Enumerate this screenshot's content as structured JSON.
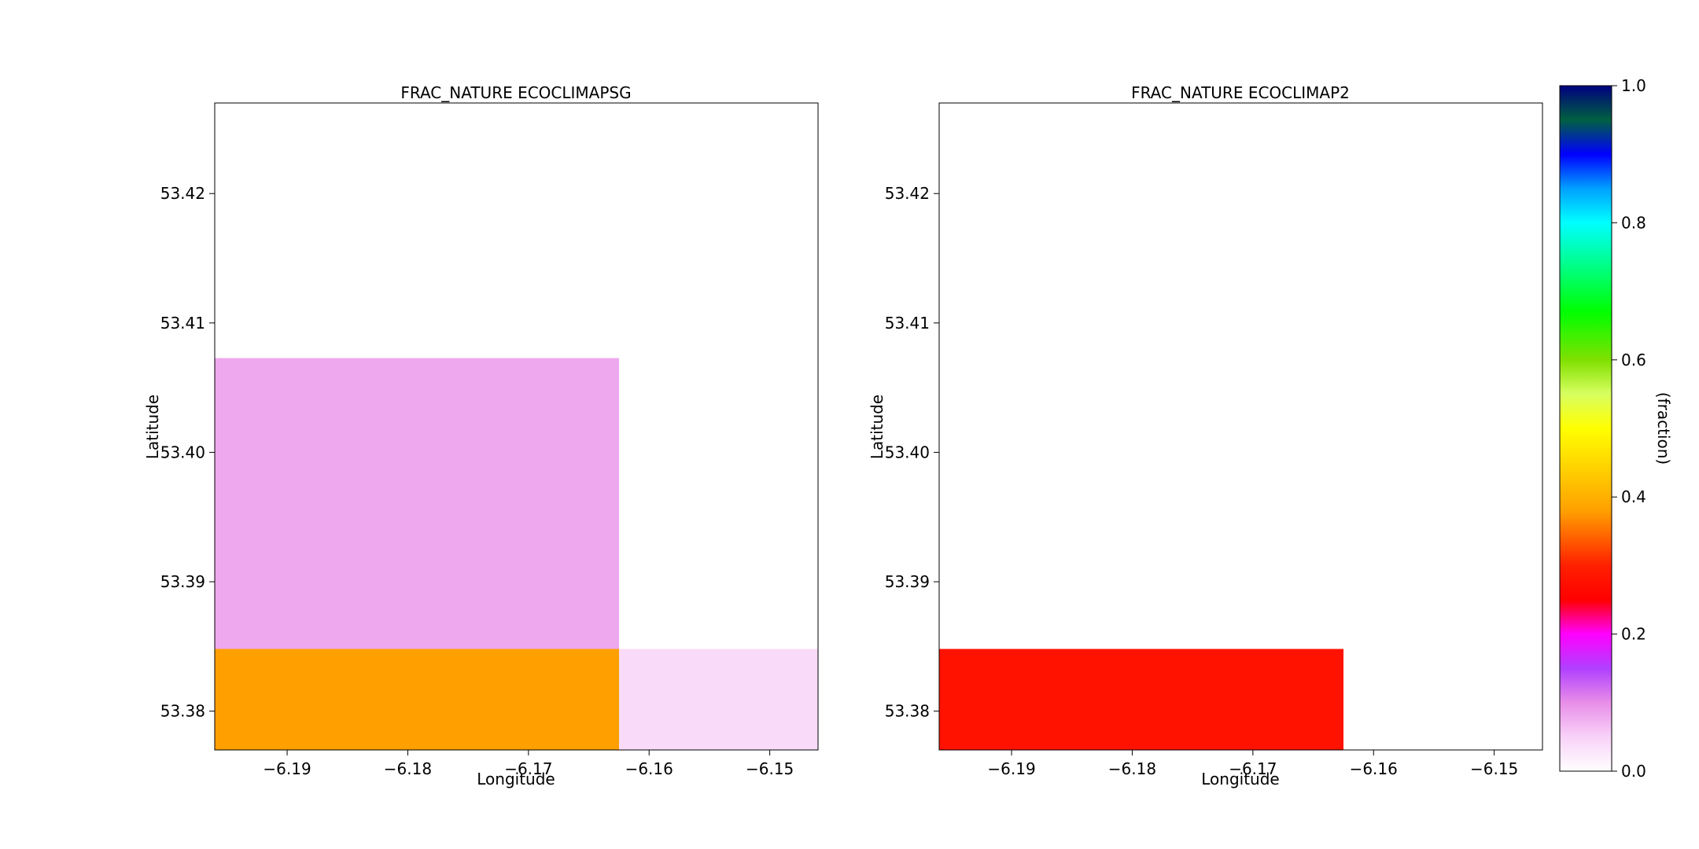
{
  "chart_data": [
    {
      "type": "heatmap",
      "title": "FRAC_NATURE ECOCLIMAPSG",
      "xlabel": "Longitude",
      "ylabel": "Latitude",
      "xlim": [
        -6.196,
        -6.146
      ],
      "ylim": [
        53.377,
        53.427
      ],
      "xticks": [
        -6.19,
        -6.18,
        -6.17,
        -6.16,
        -6.15
      ],
      "xtick_labels": [
        "−6.19",
        "−6.18",
        "−6.17",
        "−6.16",
        "−6.15"
      ],
      "yticks": [
        53.38,
        53.39,
        53.4,
        53.41,
        53.42
      ],
      "ytick_labels": [
        "53.38",
        "53.39",
        "53.40",
        "53.41",
        "53.42"
      ],
      "cells": [
        {
          "lon": [
            -6.196,
            -6.1625
          ],
          "lat": [
            53.377,
            53.3848
          ],
          "value": 0.38
        },
        {
          "lon": [
            -6.1625,
            -6.146
          ],
          "lat": [
            53.377,
            53.3848
          ],
          "value": 0.04
        },
        {
          "lon": [
            -6.196,
            -6.1625
          ],
          "lat": [
            53.3848,
            53.4073
          ],
          "value": 0.08
        },
        {
          "lon": [
            -6.1625,
            -6.146
          ],
          "lat": [
            53.3848,
            53.4073
          ],
          "value": 0.0
        },
        {
          "lon": [
            -6.196,
            -6.146
          ],
          "lat": [
            53.4073,
            53.427
          ],
          "value": 0.0
        }
      ]
    },
    {
      "type": "heatmap",
      "title": "FRAC_NATURE ECOCLIMAP2",
      "xlabel": "Longitude",
      "ylabel": "Latitude",
      "xlim": [
        -6.196,
        -6.146
      ],
      "ylim": [
        53.377,
        53.427
      ],
      "xticks": [
        -6.19,
        -6.18,
        -6.17,
        -6.16,
        -6.15
      ],
      "xtick_labels": [
        "−6.19",
        "−6.18",
        "−6.17",
        "−6.16",
        "−6.15"
      ],
      "yticks": [
        53.38,
        53.39,
        53.4,
        53.41,
        53.42
      ],
      "ytick_labels": [
        "53.38",
        "53.39",
        "53.40",
        "53.41",
        "53.42"
      ],
      "cells": [
        {
          "lon": [
            -6.196,
            -6.1625
          ],
          "lat": [
            53.377,
            53.3848
          ],
          "value": 0.28
        },
        {
          "lon": [
            -6.1625,
            -6.146
          ],
          "lat": [
            53.377,
            53.3848
          ],
          "value": 0.0
        },
        {
          "lon": [
            -6.196,
            -6.146
          ],
          "lat": [
            53.3848,
            53.427
          ],
          "value": 0.0
        }
      ]
    }
  ],
  "colorbar": {
    "label": "(fraction)",
    "range": [
      0.0,
      1.0
    ],
    "ticks": [
      0.0,
      0.2,
      0.4,
      0.6,
      0.8,
      1.0
    ],
    "tick_labels": [
      "0.0",
      "0.2",
      "0.4",
      "0.6",
      "0.8",
      "1.0"
    ],
    "colormap": "gist_ncar_r",
    "stops": [
      {
        "v": 0.0,
        "c": "#ffffff"
      },
      {
        "v": 0.05,
        "c": "#f8d2f8"
      },
      {
        "v": 0.1,
        "c": "#e88ee8"
      },
      {
        "v": 0.15,
        "c": "#b040ff"
      },
      {
        "v": 0.2,
        "c": "#ff00ff"
      },
      {
        "v": 0.25,
        "c": "#ff0000"
      },
      {
        "v": 0.3,
        "c": "#ff2000"
      },
      {
        "v": 0.38,
        "c": "#ffa000"
      },
      {
        "v": 0.45,
        "c": "#ffd800"
      },
      {
        "v": 0.5,
        "c": "#ffff00"
      },
      {
        "v": 0.55,
        "c": "#d8ff60"
      },
      {
        "v": 0.6,
        "c": "#80e000"
      },
      {
        "v": 0.67,
        "c": "#00ff00"
      },
      {
        "v": 0.75,
        "c": "#00ffa0"
      },
      {
        "v": 0.8,
        "c": "#00ffff"
      },
      {
        "v": 0.85,
        "c": "#00a0ff"
      },
      {
        "v": 0.9,
        "c": "#0000ff"
      },
      {
        "v": 0.95,
        "c": "#006040"
      },
      {
        "v": 1.0,
        "c": "#000080"
      }
    ]
  }
}
